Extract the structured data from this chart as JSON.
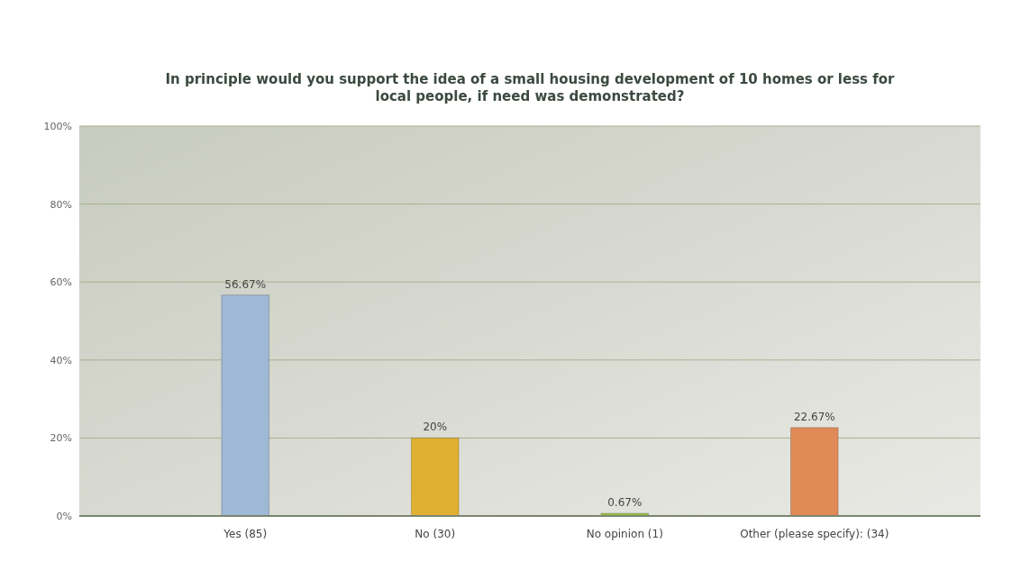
{
  "chart_data": {
    "type": "bar",
    "title": "In principle would you support the idea of a small housing development of 10 homes or less for local people, if need was demonstrated?",
    "categories": [
      "Yes (85)",
      "No (30)",
      "No opinion (1)",
      "Other (please specify): (34)"
    ],
    "values": [
      56.67,
      20,
      0.67,
      22.67
    ],
    "colors": [
      "#9fb8d6",
      "#e0b030",
      "#9cc040",
      "#e08a58"
    ],
    "value_labels": [
      "56.67%",
      "20%",
      "0.67%",
      "22.67%"
    ],
    "ylim": [
      0,
      100
    ],
    "yticks": [
      {
        "value": 0,
        "label": "0%"
      },
      {
        "value": 20,
        "label": "20%"
      },
      {
        "value": 40,
        "label": "40%"
      },
      {
        "value": 60,
        "label": "60%"
      },
      {
        "value": 80,
        "label": "80%"
      },
      {
        "value": 100,
        "label": "100%"
      }
    ],
    "grid": "y"
  }
}
